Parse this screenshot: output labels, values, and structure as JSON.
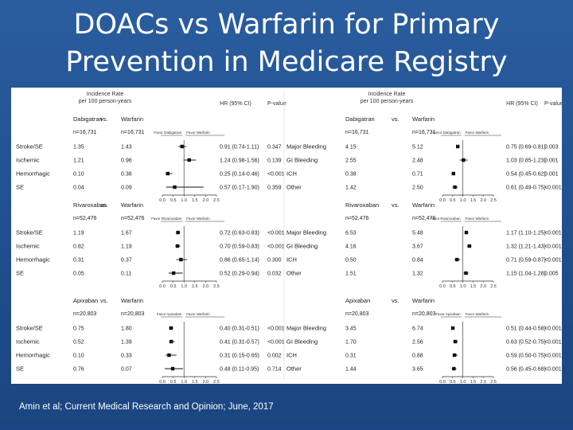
{
  "title_line1": "DOACs vs Warfarin for Primary",
  "title_line2": "Prevention in Medicare Registry",
  "citation": "Amin et al; Current Medical Research and Opinion; June, 2017",
  "colors": {
    "background": "#1f4e8c",
    "marker": "#111111"
  },
  "tick_labels": [
    "0.0",
    "0.5",
    "1.0",
    "1.5",
    "2.0",
    "2.5"
  ],
  "rate_header": {
    "line1": "Incidence Rate",
    "line2": "per 100 person-years"
  },
  "ci_header": "HR (95% CI)",
  "p_header": "P-value",
  "vs_label": "vs.",
  "chart_data": [
    {
      "type": "forest",
      "position": "top-left",
      "drug": "Dabigatran",
      "comparator": "Warfarin",
      "n_drug": "n=16,731",
      "n_comp": "n=16,731",
      "favor_left": "Favor Dabigatran",
      "favor_right": "Favor Warfarin",
      "rows": [
        {
          "label": "Stroke/SE",
          "drug_rate": "1.35",
          "comp_rate": "1.43",
          "hr": 0.91,
          "lo": 0.74,
          "hi": 1.11,
          "hr_text": "0.91 (0.74-1.11)",
          "p": "0.347"
        },
        {
          "label": "Ischemic",
          "drug_rate": "1.21",
          "comp_rate": "0.96",
          "hr": 1.24,
          "lo": 0.98,
          "hi": 1.56,
          "hr_text": "1.24 (0.98-1.56)",
          "p": "0.139"
        },
        {
          "label": "Hemorrhagic",
          "drug_rate": "0.10",
          "comp_rate": "0.38",
          "hr": 0.25,
          "lo": 0.14,
          "hi": 0.46,
          "hr_text": "0.25 (0.14-0.46)",
          "p": "<0.001"
        },
        {
          "label": "SE",
          "drug_rate": "0.04",
          "comp_rate": "0.09",
          "hr": 0.57,
          "lo": 0.17,
          "hi": 1.9,
          "hr_text": "0.57 (0.17-1.90)",
          "p": "0.359"
        }
      ]
    },
    {
      "type": "forest",
      "position": "top-right",
      "drug": "Dabigatran",
      "comparator": "Warfarin",
      "n_drug": "n=16,731",
      "n_comp": "n=16,731",
      "favor_left": "Favor Dabigatran",
      "favor_right": "Favor Warfarin",
      "rows": [
        {
          "label": "Major Bleeding",
          "drug_rate": "4.15",
          "comp_rate": "5.12",
          "hr": 0.75,
          "lo": 0.69,
          "hi": 0.81,
          "hr_text": "0.75 (0.69-0.81)",
          "p": "0.003"
        },
        {
          "label": "GI Bleeding",
          "drug_rate": "2.55",
          "comp_rate": "2.48",
          "hr": 1.03,
          "lo": 0.85,
          "hi": 1.23,
          "hr_text": "1.03 (0.85-1.23)",
          "p": "0.001"
        },
        {
          "label": "ICH",
          "drug_rate": "0.38",
          "comp_rate": "0.71",
          "hr": 0.54,
          "lo": 0.45,
          "hi": 0.62,
          "hr_text": "0.54 (0.45-0.62)",
          "p": "0.001"
        },
        {
          "label": "Other",
          "drug_rate": "1.42",
          "comp_rate": "2.50",
          "hr": 0.61,
          "lo": 0.49,
          "hi": 0.75,
          "hr_text": "0.61 (0.49-0.75)",
          "p": "<0.001"
        }
      ]
    },
    {
      "type": "forest",
      "position": "middle-left",
      "drug": "Rivaroxaban",
      "comparator": "Warfarin",
      "n_drug": "n=52,476",
      "n_comp": "n=52,476",
      "favor_left": "Favor Rivaroxaban",
      "favor_right": "Favor Warfarin",
      "rows": [
        {
          "label": "Stroke/SE",
          "drug_rate": "1.19",
          "comp_rate": "1.67",
          "hr": 0.72,
          "lo": 0.63,
          "hi": 0.83,
          "hr_text": "0.72 (0.63-0.83)",
          "p": "<0.001"
        },
        {
          "label": "Ischemic",
          "drug_rate": "0.82",
          "comp_rate": "1.19",
          "hr": 0.7,
          "lo": 0.59,
          "hi": 0.83,
          "hr_text": "0.70 (0.59-0.83)",
          "p": "<0.001"
        },
        {
          "label": "Hemorrhagic",
          "drug_rate": "0.31",
          "comp_rate": "0.37",
          "hr": 0.86,
          "lo": 0.65,
          "hi": 1.14,
          "hr_text": "0.86 (0.65-1.14)",
          "p": "0.300"
        },
        {
          "label": "SE",
          "drug_rate": "0.05",
          "comp_rate": "0.11",
          "hr": 0.52,
          "lo": 0.29,
          "hi": 0.94,
          "hr_text": "0.52 (0.29-0.94)",
          "p": "0.032"
        }
      ]
    },
    {
      "type": "forest",
      "position": "middle-right",
      "drug": "Rivaroxaban",
      "comparator": "Warfarin",
      "n_drug": "n=52,476",
      "n_comp": "n=52,476",
      "favor_left": "Favor Rivaroxaban",
      "favor_right": "Favor Warfarin",
      "rows": [
        {
          "label": "Major Bleeding",
          "drug_rate": "6.53",
          "comp_rate": "5.48",
          "hr": 1.17,
          "lo": 1.1,
          "hi": 1.25,
          "hr_text": "1.17 (1.10-1.25)",
          "p": "<0.001"
        },
        {
          "label": "GI Bleeding",
          "drug_rate": "4.16",
          "comp_rate": "3.67",
          "hr": 1.32,
          "lo": 1.21,
          "hi": 1.43,
          "hr_text": "1.32 (1.21-1.43)",
          "p": "<0.001"
        },
        {
          "label": "ICH",
          "drug_rate": "0.50",
          "comp_rate": "0.84",
          "hr": 0.71,
          "lo": 0.59,
          "hi": 0.87,
          "hr_text": "0.71 (0.59-0.87)",
          "p": "<0.001"
        },
        {
          "label": "Other",
          "drug_rate": "1.51",
          "comp_rate": "1.32",
          "hr": 1.15,
          "lo": 1.04,
          "hi": 1.28,
          "hr_text": "1.15 (1.04-1.28)",
          "p": "0.005"
        }
      ]
    },
    {
      "type": "forest",
      "position": "bottom-left",
      "drug": "Apixaban",
      "comparator": "Warfarin",
      "n_drug": "n=20,803",
      "n_comp": "n=20,803",
      "favor_left": "Favor Apixaban",
      "favor_right": "Favor Warfarin",
      "rows": [
        {
          "label": "Stroke/SE",
          "drug_rate": "0.75",
          "comp_rate": "1.80",
          "hr": 0.4,
          "lo": 0.31,
          "hi": 0.51,
          "hr_text": "0.40 (0.31-0.51)",
          "p": "<0.001"
        },
        {
          "label": "Ischemic",
          "drug_rate": "0.52",
          "comp_rate": "1.39",
          "hr": 0.41,
          "lo": 0.31,
          "hi": 0.57,
          "hr_text": "0.41 (0.31-0.57)",
          "p": "<0.001"
        },
        {
          "label": "Hemorrhagic",
          "drug_rate": "0.10",
          "comp_rate": "0.33",
          "hr": 0.31,
          "lo": 0.15,
          "hi": 0.65,
          "hr_text": "0.31 (0.15-0.65)",
          "p": "0.002"
        },
        {
          "label": "SE",
          "drug_rate": "0.76",
          "comp_rate": "0.07",
          "hr": 0.48,
          "lo": 0.11,
          "hi": 0.95,
          "hr_text": "0.48 (0.11-0.95)",
          "p": "0.714"
        }
      ]
    },
    {
      "type": "forest",
      "position": "bottom-right",
      "drug": "Apixaban",
      "comparator": "Warfarin",
      "n_drug": "n=20,803",
      "n_comp": "n=20,803",
      "favor_left": "Favor Apixaban",
      "favor_right": "Favor Warfarin",
      "rows": [
        {
          "label": "Major Bleeding",
          "drug_rate": "3.45",
          "comp_rate": "6.74",
          "hr": 0.51,
          "lo": 0.44,
          "hi": 0.58,
          "hr_text": "0.51 (0.44-0.58)",
          "p": "<0.001"
        },
        {
          "label": "GI Bleeding",
          "drug_rate": "1.70",
          "comp_rate": "2.56",
          "hr": 0.63,
          "lo": 0.52,
          "hi": 0.75,
          "hr_text": "0.63 (0.52-0.75)",
          "p": "<0.001"
        },
        {
          "label": "ICH",
          "drug_rate": "0.31",
          "comp_rate": "0.88",
          "hr": 0.59,
          "lo": 0.5,
          "hi": 0.75,
          "hr_text": "0.59 (0.50-0.75)",
          "p": "<0.001"
        },
        {
          "label": "Other",
          "drug_rate": "1.44",
          "comp_rate": "3.65",
          "hr": 0.56,
          "lo": 0.45,
          "hi": 0.68,
          "hr_text": "0.56 (0.45-0.68)",
          "p": "<0.001"
        }
      ]
    }
  ]
}
